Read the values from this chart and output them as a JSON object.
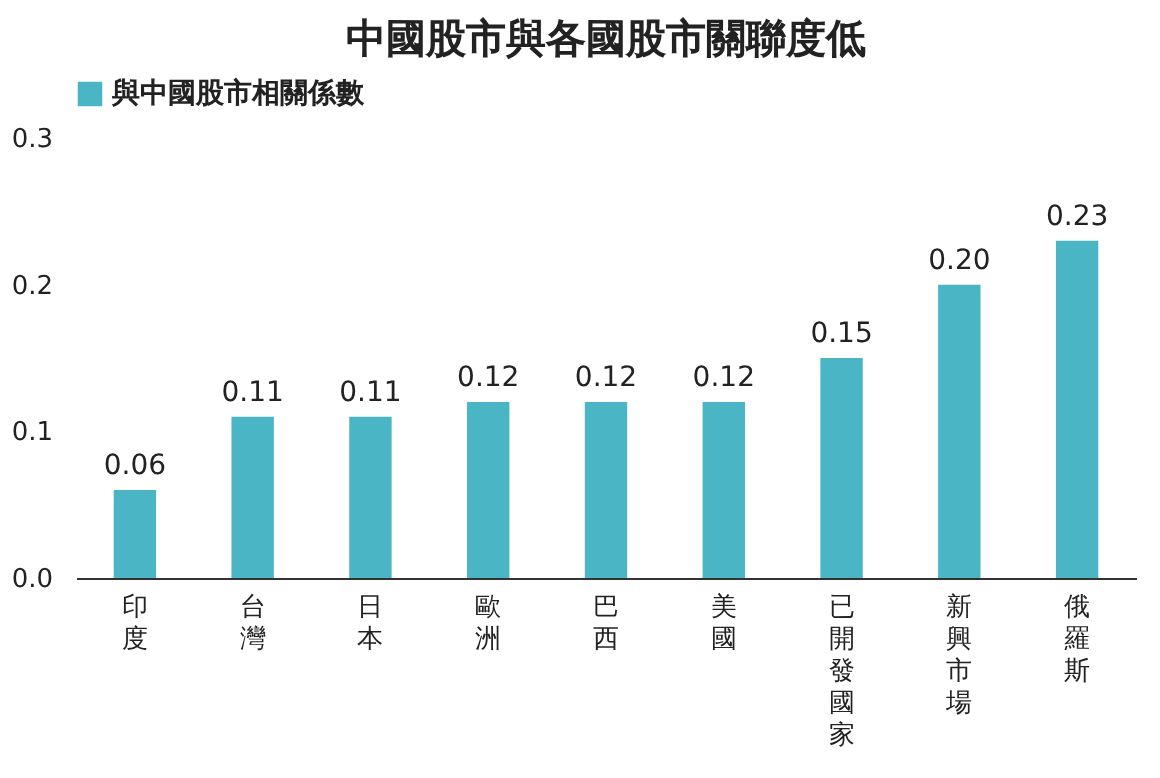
{
  "chart_data": {
    "type": "bar",
    "title": "中國股市與各國股市關聯度低",
    "categories": [
      "印度",
      "台灣",
      "日本",
      "歐洲",
      "巴西",
      "美國",
      "已開發國家",
      "新興市場",
      "俄羅斯"
    ],
    "series": [
      {
        "name": "與中國股市相關係數",
        "color": "#4ab5c4",
        "values": [
          0.06,
          0.11,
          0.11,
          0.12,
          0.12,
          0.12,
          0.15,
          0.2,
          0.23
        ],
        "value_labels": [
          "0.06",
          "0.11",
          "0.11",
          "0.12",
          "0.12",
          "0.12",
          "0.15",
          "0.20",
          "0.23"
        ]
      }
    ],
    "ylim": [
      0,
      0.3
    ],
    "yticks": [
      {
        "value": 0,
        "label": "0.0"
      },
      {
        "value": 0.1,
        "label": "0.1"
      },
      {
        "value": 0.2,
        "label": "0.2"
      },
      {
        "value": 0.3,
        "label": "0.3"
      }
    ],
    "grid": false,
    "legend": "top"
  }
}
